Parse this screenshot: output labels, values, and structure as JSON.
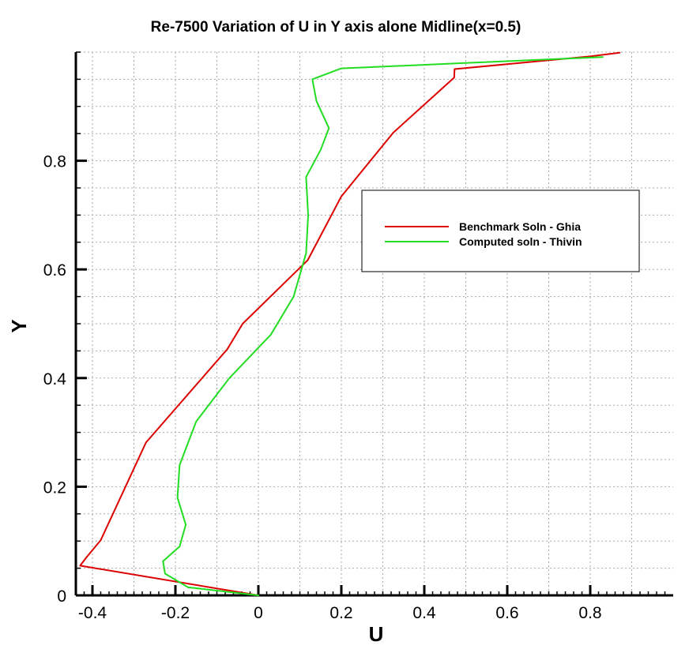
{
  "chart_data": {
    "type": "line",
    "title": "Re-7500 Variation of U in Y axis alone Midline(x=0.5)",
    "xlabel": "U",
    "ylabel": "Y",
    "xlim": [
      -0.44,
      1.0
    ],
    "ylim": [
      0,
      1.0
    ],
    "x_ticks": [
      -0.4,
      -0.2,
      0,
      0.2,
      0.4,
      0.6,
      0.8
    ],
    "x_tick_labels": [
      "-0.4",
      "-0.2",
      "0",
      "0.2",
      "0.4",
      "0.6",
      "0.8"
    ],
    "y_ticks": [
      0,
      0.2,
      0.4,
      0.6,
      0.8
    ],
    "y_tick_labels": [
      "0",
      "0.2",
      "0.4",
      "0.6",
      "0.8"
    ],
    "grid": true,
    "legend_position": "right-middle",
    "series": [
      {
        "name": "Benchmark Soln - Ghia",
        "color": "#dd0000",
        "points": [
          [
            0,
            0
          ],
          [
            -0.4297,
            0.0547
          ],
          [
            -0.4141,
            0.0703
          ],
          [
            -0.38,
            0.1016
          ],
          [
            -0.271,
            0.2813
          ],
          [
            -0.075,
            0.4531
          ],
          [
            -0.038,
            0.5
          ],
          [
            0.119,
            0.6172
          ],
          [
            0.2,
            0.7344
          ],
          [
            0.325,
            0.8516
          ],
          [
            0.472,
            0.9531
          ],
          [
            0.473,
            0.9688
          ],
          [
            0.8,
            0.9922
          ],
          [
            0.871,
            0.999
          ]
        ]
      },
      {
        "name": "Computed soln - Thivin",
        "color": "#22dd22",
        "points": [
          [
            0,
            0
          ],
          [
            -0.17,
            0.015
          ],
          [
            -0.225,
            0.04
          ],
          [
            -0.23,
            0.063
          ],
          [
            -0.19,
            0.09
          ],
          [
            -0.175,
            0.13
          ],
          [
            -0.195,
            0.18
          ],
          [
            -0.19,
            0.24
          ],
          [
            -0.15,
            0.32
          ],
          [
            -0.07,
            0.4
          ],
          [
            0.03,
            0.48
          ],
          [
            0.085,
            0.55
          ],
          [
            0.115,
            0.63
          ],
          [
            0.12,
            0.7
          ],
          [
            0.115,
            0.77
          ],
          [
            0.15,
            0.82
          ],
          [
            0.17,
            0.86
          ],
          [
            0.14,
            0.91
          ],
          [
            0.13,
            0.95
          ],
          [
            0.2,
            0.97
          ],
          [
            0.5,
            0.98
          ],
          [
            0.83,
            0.991
          ]
        ]
      }
    ]
  }
}
